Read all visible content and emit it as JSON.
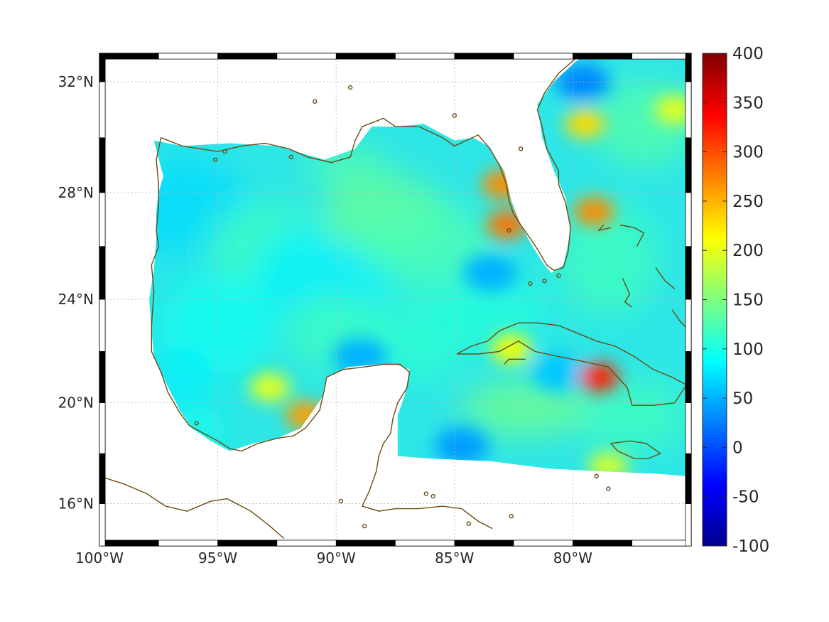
{
  "map": {
    "type": "heatmap",
    "projection": "mercator",
    "lon_range": [
      -100,
      -75
    ],
    "lat_range": [
      14.3,
      33
    ],
    "x_ticks": [
      "100°W",
      "95°W",
      "90°W",
      "85°W",
      "80°W"
    ],
    "x_tick_values": [
      -100,
      -95,
      -90,
      -85,
      -80
    ],
    "y_ticks": [
      "32°N",
      "28°N",
      "24°N",
      "20°N",
      "16°N"
    ],
    "y_tick_values": [
      32,
      28,
      24,
      20,
      16
    ],
    "grid": true,
    "coastline_color": "#6b4a12",
    "frame_colors": [
      "#000000",
      "#ffffff"
    ]
  },
  "colorbar": {
    "colormap": "jet",
    "range": [
      -100,
      400
    ],
    "ticks": [
      "400",
      "350",
      "300",
      "250",
      "200",
      "150",
      "100",
      "50",
      "0",
      "-50",
      "-100"
    ],
    "tick_values": [
      400,
      350,
      300,
      250,
      200,
      150,
      100,
      50,
      0,
      -50,
      -100
    ]
  },
  "chart_data": {
    "type": "heatmap",
    "title": "",
    "value_range": [
      -100,
      400
    ],
    "hotspots": [
      {
        "lon": -83.0,
        "lat": 28.3,
        "value": 270
      },
      {
        "lon": -82.8,
        "lat": 26.8,
        "value": 280
      },
      {
        "lon": -79.1,
        "lat": 27.3,
        "value": 270
      },
      {
        "lon": -79.5,
        "lat": 30.5,
        "value": 230
      },
      {
        "lon": -78.9,
        "lat": 21.0,
        "value": 320
      },
      {
        "lon": -82.6,
        "lat": 22.1,
        "value": 210
      },
      {
        "lon": -92.8,
        "lat": 20.6,
        "value": 200
      },
      {
        "lon": -91.3,
        "lat": 19.5,
        "value": 260
      },
      {
        "lon": -75.7,
        "lat": 31.0,
        "value": 200
      },
      {
        "lon": -78.5,
        "lat": 17.5,
        "value": 190
      }
    ],
    "coldspots": [
      {
        "lon": -79.6,
        "lat": 32.0,
        "value": 30
      },
      {
        "lon": -84.7,
        "lat": 18.3,
        "value": 40
      },
      {
        "lon": -89.0,
        "lat": 21.8,
        "value": 50
      },
      {
        "lon": -83.5,
        "lat": 25.0,
        "value": 50
      },
      {
        "lon": -80.6,
        "lat": 21.2,
        "value": 60
      }
    ]
  }
}
